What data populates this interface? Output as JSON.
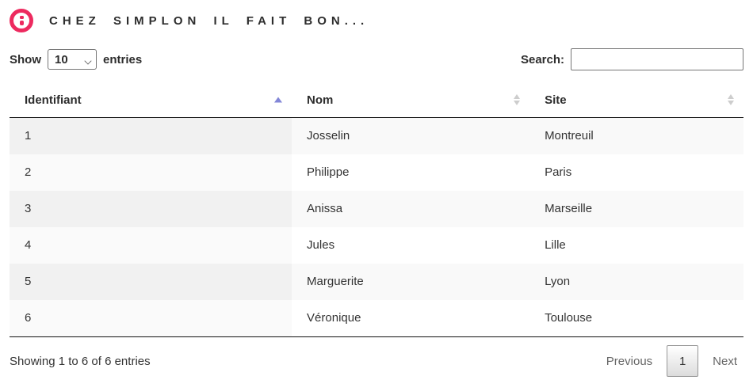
{
  "banner": {
    "title": "Chez Simplon il fait bon...",
    "logo_icon": "simplon-colon-logo"
  },
  "controls": {
    "show_label": "Show",
    "entries_label": "entries",
    "length_value": "10",
    "search_label": "Search:",
    "search_value": "",
    "search_placeholder": ""
  },
  "table": {
    "columns": [
      {
        "label": "Identifiant",
        "sort_state": "ascending",
        "sort_icon": "sort-asc-icon"
      },
      {
        "label": "Nom",
        "sort_state": "unsorted",
        "sort_icon": "sort-both-icon"
      },
      {
        "label": "Site",
        "sort_state": "unsorted",
        "sort_icon": "sort-both-icon"
      }
    ],
    "rows": [
      {
        "identifiant": "1",
        "nom": "Josselin",
        "site": "Montreuil"
      },
      {
        "identifiant": "2",
        "nom": "Philippe",
        "site": "Paris"
      },
      {
        "identifiant": "3",
        "nom": "Anissa",
        "site": "Marseille"
      },
      {
        "identifiant": "4",
        "nom": "Jules",
        "site": "Lille"
      },
      {
        "identifiant": "5",
        "nom": "Marguerite",
        "site": "Lyon"
      },
      {
        "identifiant": "6",
        "nom": "Véronique",
        "site": "Toulouse"
      }
    ]
  },
  "footer": {
    "info": "Showing 1 to 6 of 6 entries",
    "previous_label": "Previous",
    "pages": [
      "1"
    ],
    "current_page": "1",
    "next_label": "Next"
  },
  "colors": {
    "brand_pink": "#ed2a5f",
    "sort_active_arrow": "#8286d7",
    "sort_inactive_arrow": "#cdcdcd",
    "header_border": "#111111",
    "stripe_odd": "#f9f9f9",
    "stripe_odd_sorted": "#f1f1f1",
    "stripe_even_sorted": "#fafafa",
    "pagination_text": "#666666",
    "page_button_border": "#979797"
  }
}
